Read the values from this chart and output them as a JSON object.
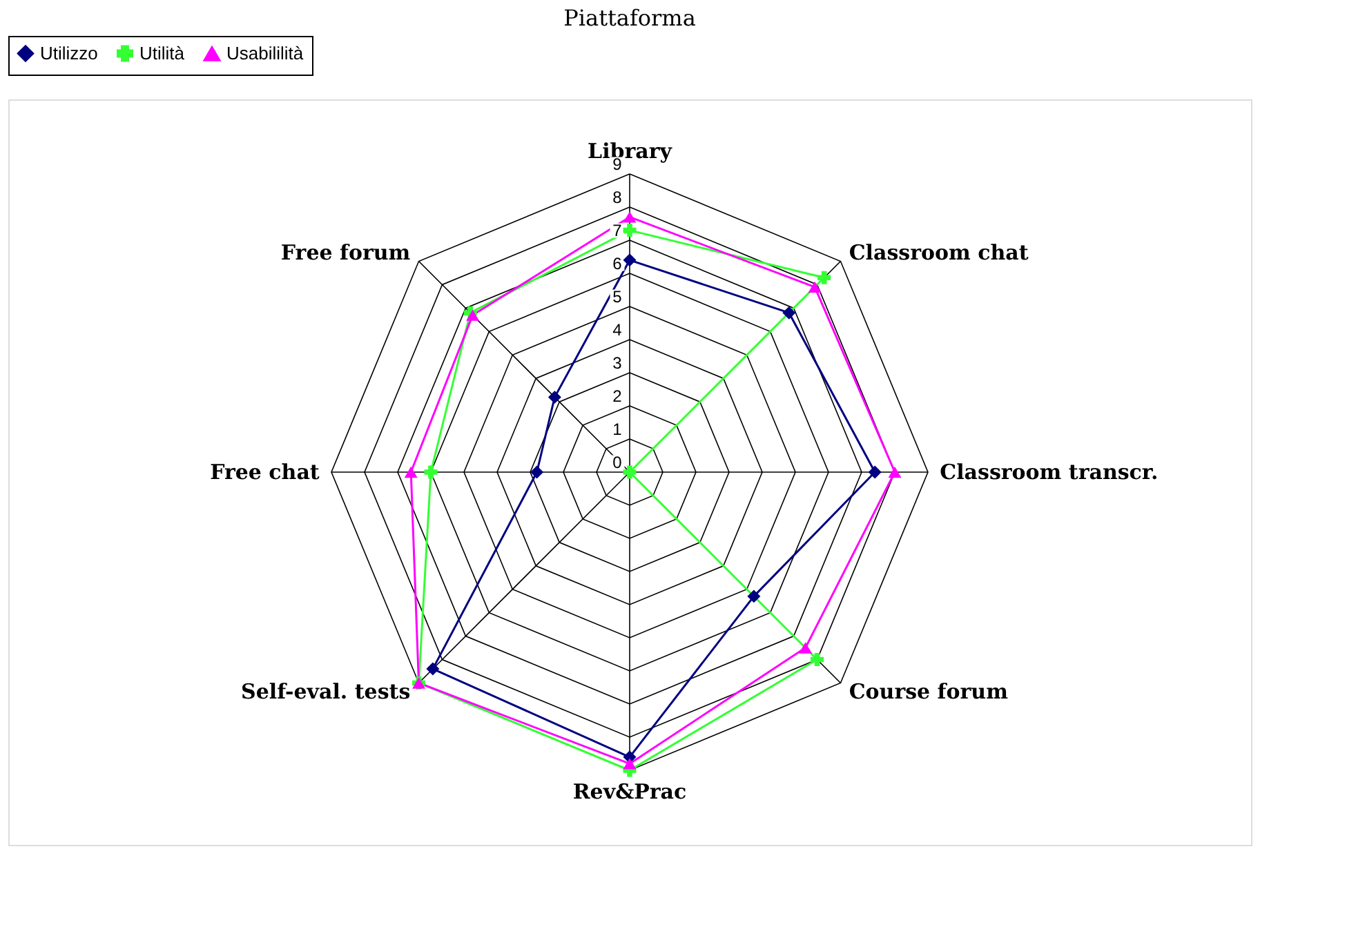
{
  "chart_data": {
    "type": "radar",
    "title": "Piattaforma",
    "categories": [
      "Library",
      "Classroom chat",
      "Classroom transcr.",
      "Course forum",
      "Rev&Prac",
      "Self-eval. tests",
      "Free chat",
      "Free forum"
    ],
    "series": [
      {
        "name": "Utilizzo",
        "color": "#000080",
        "marker": "diamond",
        "values": [
          6.4,
          6.8,
          7.4,
          5.3,
          8.6,
          8.4,
          2.8,
          3.2
        ]
      },
      {
        "name": "Utilità",
        "color": "#33ff33",
        "marker": "cross",
        "values": [
          7.3,
          8.3,
          0,
          8.0,
          9.0,
          9.0,
          6.0,
          6.8
        ]
      },
      {
        "name": "Usabililità",
        "color": "#ff00ff",
        "marker": "triangle",
        "values": [
          7.7,
          7.9,
          8.0,
          7.5,
          8.8,
          9.0,
          6.6,
          6.7
        ]
      }
    ],
    "ylim": [
      0,
      9
    ],
    "yticks": [
      0,
      1,
      2,
      3,
      4,
      5,
      6,
      7,
      8,
      9
    ],
    "grid": true,
    "legend": "top"
  }
}
